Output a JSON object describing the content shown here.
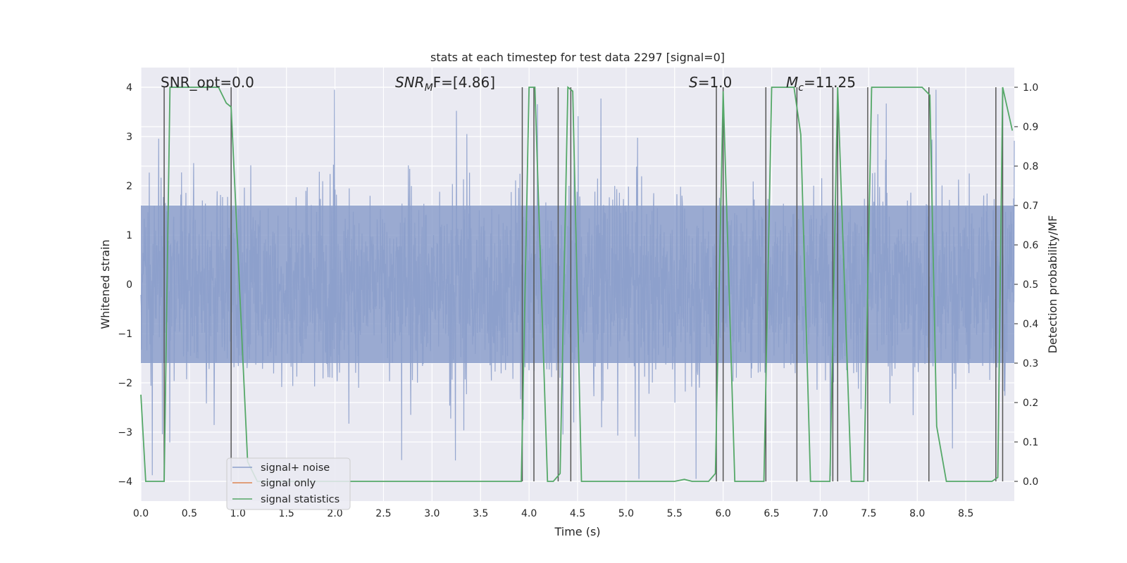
{
  "chart_data": {
    "type": "line",
    "title": "stats at each timestep for test data 2297 [signal=0]",
    "xlabel": "Time (s)",
    "ylabel_left": "Whitened strain",
    "ylabel_right": "Detection probability/MF",
    "xlim": [
      0.0,
      9.0
    ],
    "ylim_left": [
      -4.4,
      4.4
    ],
    "ylim_right": [
      -0.05,
      1.05
    ],
    "x_ticks": [
      "0.0",
      "0.5",
      "1.0",
      "1.5",
      "2.0",
      "2.5",
      "3.0",
      "3.5",
      "4.0",
      "4.5",
      "5.0",
      "5.5",
      "6.0",
      "6.5",
      "7.0",
      "7.5",
      "8.0",
      "8.5"
    ],
    "y_ticks_left": [
      "4",
      "3",
      "2",
      "1",
      "0",
      "−1",
      "−2",
      "−3",
      "−4"
    ],
    "y_ticks_right": [
      "1.0",
      "0.9",
      "0.8",
      "0.7",
      "0.6",
      "0.5",
      "0.4",
      "0.3",
      "0.2",
      "0.1",
      "0.0"
    ],
    "grid": true,
    "legend_placement": "lower-left",
    "annotations": {
      "snr_opt": "SNR_opt=0.0",
      "snr_mf_main": "SNR",
      "snr_mf_sub": "M",
      "snr_mf_rest": "F=[4.86]",
      "s_main": "S",
      "s_rest": "=1.0",
      "mc_main": "M",
      "mc_sub": "c",
      "mc_rest": "=11.25"
    },
    "series": [
      {
        "name": "signal+ noise",
        "color": "#8c9fcb",
        "axis": "left",
        "description_values": {
          "amplitude_band": [
            -1.6,
            1.6
          ],
          "peak_max": 3.9,
          "peak_min": -3.9
        }
      },
      {
        "name": "signal only",
        "color": "#dd8452",
        "axis": "left",
        "values": []
      },
      {
        "name": "signal statistics",
        "color": "#55a868",
        "axis": "right",
        "points": [
          [
            0.0,
            0.22
          ],
          [
            0.05,
            0.0
          ],
          [
            0.24,
            0.0
          ],
          [
            0.3,
            1.0
          ],
          [
            0.8,
            1.0
          ],
          [
            0.88,
            0.96
          ],
          [
            0.93,
            0.95
          ],
          [
            1.1,
            0.05
          ],
          [
            1.2,
            0.0
          ],
          [
            3.92,
            0.0
          ],
          [
            4.0,
            1.0
          ],
          [
            4.06,
            1.0
          ],
          [
            4.19,
            0.0
          ],
          [
            4.25,
            0.0
          ],
          [
            4.32,
            0.02
          ],
          [
            4.4,
            1.0
          ],
          [
            4.45,
            0.99
          ],
          [
            4.54,
            0.0
          ],
          [
            4.7,
            0.0
          ],
          [
            5.5,
            0.0
          ],
          [
            5.6,
            0.005
          ],
          [
            5.68,
            0.0
          ],
          [
            5.85,
            0.0
          ],
          [
            5.92,
            0.02
          ],
          [
            6.0,
            0.99
          ],
          [
            6.12,
            0.0
          ],
          [
            6.42,
            0.0
          ],
          [
            6.5,
            1.0
          ],
          [
            6.73,
            1.0
          ],
          [
            6.8,
            0.88
          ],
          [
            6.9,
            0.0
          ],
          [
            7.1,
            0.0
          ],
          [
            7.18,
            1.0
          ],
          [
            7.32,
            0.0
          ],
          [
            7.45,
            0.0
          ],
          [
            7.53,
            1.0
          ],
          [
            8.05,
            1.0
          ],
          [
            8.13,
            0.98
          ],
          [
            8.2,
            0.14
          ],
          [
            8.3,
            0.0
          ],
          [
            8.77,
            0.0
          ],
          [
            8.83,
            0.01
          ],
          [
            8.88,
            1.0
          ],
          [
            8.98,
            0.89
          ]
        ]
      }
    ],
    "vertical_markers_s": [
      0.24,
      0.93,
      3.93,
      4.05,
      4.3,
      4.43,
      5.93,
      6.0,
      6.44,
      6.76,
      7.13,
      7.18,
      7.49,
      8.12,
      8.81,
      8.88
    ]
  }
}
